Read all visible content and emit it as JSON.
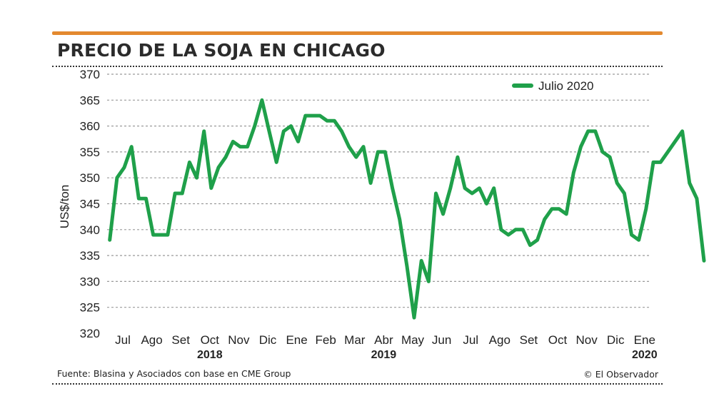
{
  "header": {
    "title": "PRECIO DE LA SOJA EN CHICAGO"
  },
  "footer": {
    "source": "Fuente: Blasina y Asociados con base en CME Group",
    "credit": "© El Observador"
  },
  "colors": {
    "accent_rule": "#e3892f",
    "series_line": "#1fa04a",
    "grid": "#9a9a9a"
  },
  "chart_data": {
    "type": "line",
    "ylabel": "US$/ton",
    "ylim": [
      320,
      370
    ],
    "yticks": [
      320,
      325,
      330,
      335,
      340,
      345,
      350,
      355,
      360,
      365,
      370
    ],
    "grid": true,
    "legend_position": "top-right",
    "x_month_labels": [
      "Jul",
      "Ago",
      "Set",
      "Oct",
      "Nov",
      "Dic",
      "Ene",
      "Feb",
      "Mar",
      "Abr",
      "May",
      "Jun",
      "Jul",
      "Ago",
      "Set",
      "Oct",
      "Nov",
      "Dic",
      "Ene"
    ],
    "x_year_labels": [
      {
        "label": "2018",
        "month_index": 3
      },
      {
        "label": "2019",
        "month_index": 9
      },
      {
        "label": "2020",
        "month_index": 18
      }
    ],
    "x_units": "months from Jul 2018 (0 = Jul 2018)",
    "series": [
      {
        "name": "Julio 2020",
        "points": [
          [
            -0.45,
            338
          ],
          [
            -0.2,
            350
          ],
          [
            0.05,
            352
          ],
          [
            0.3,
            356
          ],
          [
            0.55,
            346
          ],
          [
            0.8,
            346
          ],
          [
            1.05,
            339
          ],
          [
            1.3,
            339
          ],
          [
            1.55,
            339
          ],
          [
            1.8,
            347
          ],
          [
            2.05,
            347
          ],
          [
            2.3,
            353
          ],
          [
            2.55,
            350
          ],
          [
            2.8,
            359
          ],
          [
            3.05,
            348
          ],
          [
            3.3,
            352
          ],
          [
            3.55,
            354
          ],
          [
            3.8,
            357
          ],
          [
            4.05,
            356
          ],
          [
            4.3,
            356
          ],
          [
            4.55,
            360
          ],
          [
            4.8,
            365
          ],
          [
            5.05,
            359
          ],
          [
            5.3,
            353
          ],
          [
            5.55,
            359
          ],
          [
            5.8,
            360
          ],
          [
            6.05,
            357
          ],
          [
            6.3,
            362
          ],
          [
            6.55,
            362
          ],
          [
            6.8,
            362
          ],
          [
            7.05,
            361
          ],
          [
            7.3,
            361
          ],
          [
            7.55,
            359
          ],
          [
            7.8,
            356
          ],
          [
            8.05,
            354
          ],
          [
            8.3,
            356
          ],
          [
            8.55,
            349
          ],
          [
            8.8,
            355
          ],
          [
            9.05,
            355
          ],
          [
            9.3,
            348
          ],
          [
            9.55,
            342
          ],
          [
            9.8,
            333
          ],
          [
            10.05,
            323
          ],
          [
            10.3,
            334
          ],
          [
            10.55,
            330
          ],
          [
            10.8,
            347
          ],
          [
            11.05,
            343
          ],
          [
            11.3,
            348
          ],
          [
            11.55,
            354
          ],
          [
            11.8,
            348
          ],
          [
            12.05,
            347
          ],
          [
            12.3,
            348
          ],
          [
            12.55,
            345
          ],
          [
            12.8,
            348
          ],
          [
            13.05,
            340
          ],
          [
            13.3,
            339
          ],
          [
            13.55,
            340
          ],
          [
            13.8,
            340
          ],
          [
            14.05,
            337
          ],
          [
            14.3,
            338
          ],
          [
            14.55,
            342
          ],
          [
            14.8,
            344
          ],
          [
            15.05,
            344
          ],
          [
            15.3,
            343
          ],
          [
            15.55,
            351
          ],
          [
            15.8,
            356
          ],
          [
            16.05,
            359
          ],
          [
            16.3,
            359
          ],
          [
            16.55,
            355
          ],
          [
            16.8,
            354
          ],
          [
            17.05,
            349
          ],
          [
            17.3,
            347
          ],
          [
            17.55,
            339
          ],
          [
            17.8,
            338
          ],
          [
            18.05,
            344
          ],
          [
            18.3,
            353
          ],
          [
            18.55,
            353
          ],
          [
            18.8,
            355
          ],
          [
            19.05,
            357
          ],
          [
            19.3,
            359
          ],
          [
            19.55,
            349
          ],
          [
            19.8,
            346
          ],
          [
            20.05,
            334
          ]
        ]
      }
    ]
  }
}
